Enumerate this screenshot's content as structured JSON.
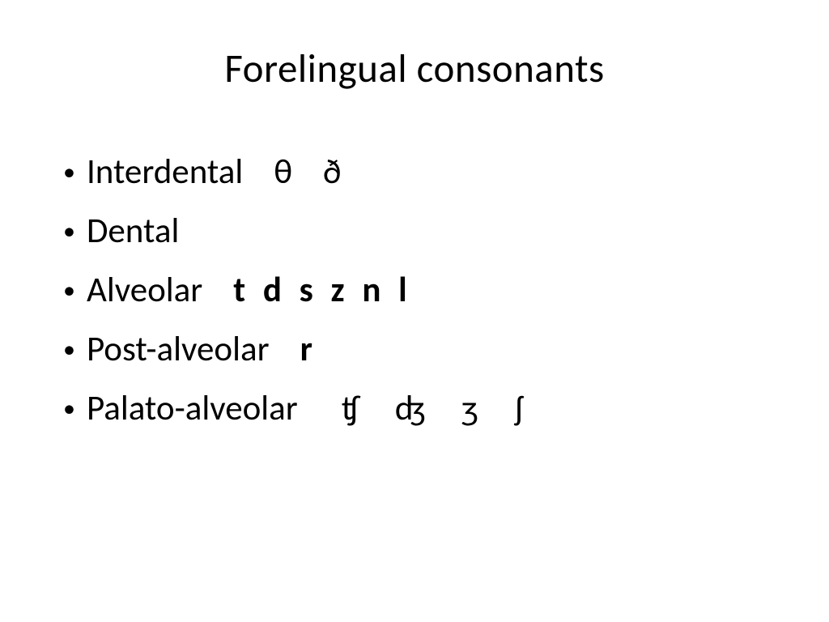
{
  "slide": {
    "title": "Forelingual consonants",
    "background_color": "#ffffff",
    "text_color": "#000000",
    "title_fontsize": 49,
    "body_fontsize": 43,
    "bullets": [
      {
        "label": "Interdental",
        "symbols": "θ    ð",
        "symbols_weight": "normal",
        "symbol_class": "symbols-normal"
      },
      {
        "label": "Dental",
        "symbols": "",
        "symbols_weight": "normal",
        "symbol_class": ""
      },
      {
        "label": "Alveolar",
        "symbols": "t  d  s  z  n  l",
        "symbols_weight": "bold",
        "symbol_class": "bullet-symbols"
      },
      {
        "label": "Post-alveolar",
        "symbols": "r",
        "symbols_weight": "bold",
        "symbol_class": "bullet-symbols"
      },
      {
        "label": "Palato-alveolar",
        "symbols": "ʧ   ʤ   ʒ   ʃ",
        "symbols_weight": "normal",
        "symbol_class": "symbols-palato"
      }
    ]
  }
}
